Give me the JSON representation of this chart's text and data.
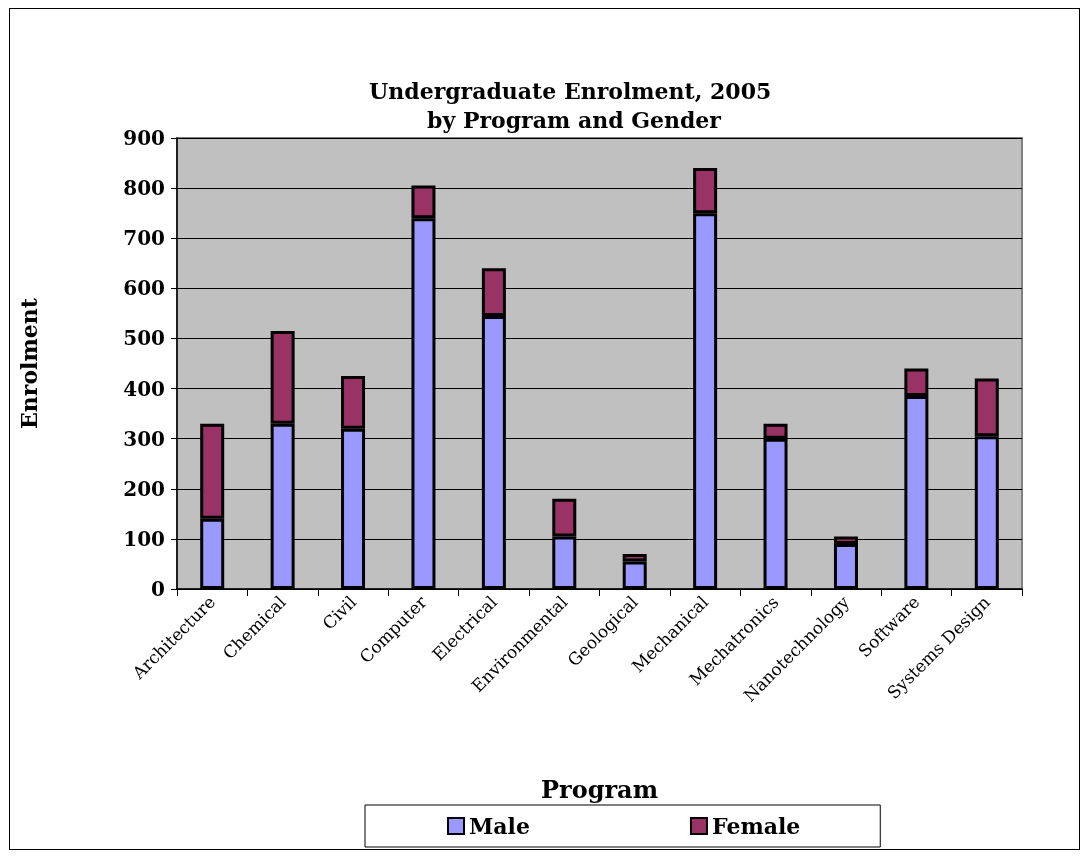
{
  "chart_data": {
    "type": "bar",
    "title": "Undergraduate Enrolment, 2005 by Program and Gender",
    "xlabel": "Program",
    "ylabel": "Enrolment",
    "categories": [
      "Architecture",
      "Chemical",
      "Civil",
      "Computer",
      "Electrical",
      "Environmental",
      "Geological",
      "Mechanical",
      "Mechatronics",
      "Nanotechnology",
      "Software",
      "Systems Design"
    ],
    "series": [
      {
        "name": "Male",
        "color": "#9999ff",
        "values": [
          140,
          330,
          320,
          740,
          545,
          105,
          55,
          750,
          300,
          90,
          385,
          305
        ]
      },
      {
        "name": "Female",
        "color": "#993366",
        "values": [
          190,
          185,
          105,
          65,
          95,
          75,
          15,
          90,
          30,
          15,
          55,
          115
        ]
      }
    ],
    "stacked": true,
    "ylim": [
      0,
      900
    ],
    "yticks": [
      0,
      100,
      200,
      300,
      400,
      500,
      600,
      700,
      800,
      900
    ],
    "grid": "y",
    "legend": "bottom"
  }
}
